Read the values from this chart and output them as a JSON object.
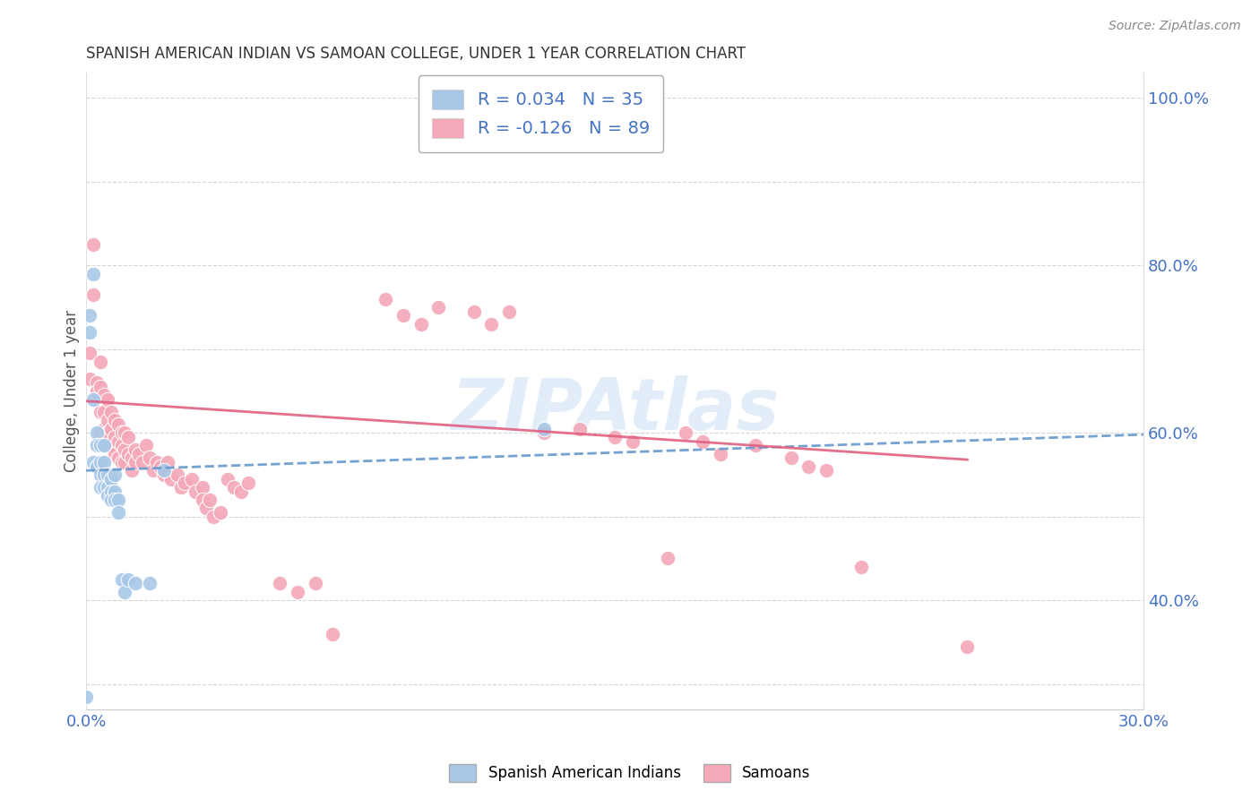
{
  "title": "SPANISH AMERICAN INDIAN VS SAMOAN COLLEGE, UNDER 1 YEAR CORRELATION CHART",
  "source": "Source: ZipAtlas.com",
  "ylabel": "College, Under 1 year",
  "xmin": 0.0,
  "xmax": 0.3,
  "ymin": 0.27,
  "ymax": 1.03,
  "watermark": "ZIPAtlas",
  "blue_color": "#A8C8E8",
  "pink_color": "#F4A8B8",
  "blue_line_color": "#6699CC",
  "pink_line_color": "#E06080",
  "title_color": "#333333",
  "axis_label_color": "#555555",
  "tick_color": "#4472C4",
  "grid_color": "#CCCCCC",
  "background_color": "#FFFFFF",
  "blue_dots_x": [
    0.001,
    0.001,
    0.002,
    0.002,
    0.002,
    0.003,
    0.003,
    0.003,
    0.004,
    0.004,
    0.004,
    0.004,
    0.005,
    0.005,
    0.005,
    0.005,
    0.006,
    0.006,
    0.006,
    0.007,
    0.007,
    0.007,
    0.008,
    0.008,
    0.008,
    0.009,
    0.009,
    0.01,
    0.011,
    0.012,
    0.014,
    0.018,
    0.022,
    0.13,
    0.0
  ],
  "blue_dots_y": [
    0.74,
    0.72,
    0.565,
    0.79,
    0.64,
    0.6,
    0.585,
    0.56,
    0.585,
    0.565,
    0.55,
    0.535,
    0.585,
    0.565,
    0.55,
    0.535,
    0.55,
    0.535,
    0.525,
    0.545,
    0.53,
    0.52,
    0.55,
    0.53,
    0.52,
    0.52,
    0.505,
    0.425,
    0.41,
    0.425,
    0.42,
    0.42,
    0.555,
    0.605,
    0.285
  ],
  "pink_dots_x": [
    0.001,
    0.001,
    0.002,
    0.002,
    0.003,
    0.003,
    0.004,
    0.004,
    0.004,
    0.004,
    0.005,
    0.005,
    0.005,
    0.006,
    0.006,
    0.006,
    0.007,
    0.007,
    0.007,
    0.008,
    0.008,
    0.008,
    0.009,
    0.009,
    0.009,
    0.01,
    0.01,
    0.01,
    0.011,
    0.011,
    0.011,
    0.012,
    0.012,
    0.013,
    0.013,
    0.014,
    0.014,
    0.015,
    0.016,
    0.017,
    0.018,
    0.019,
    0.02,
    0.021,
    0.022,
    0.023,
    0.024,
    0.026,
    0.027,
    0.028,
    0.03,
    0.031,
    0.033,
    0.033,
    0.034,
    0.035,
    0.036,
    0.038,
    0.04,
    0.042,
    0.044,
    0.046,
    0.055,
    0.06,
    0.065,
    0.07,
    0.085,
    0.09,
    0.095,
    0.1,
    0.11,
    0.115,
    0.12,
    0.13,
    0.14,
    0.15,
    0.155,
    0.165,
    0.17,
    0.175,
    0.18,
    0.19,
    0.2,
    0.205,
    0.21,
    0.22,
    0.25
  ],
  "pink_dots_y": [
    0.695,
    0.665,
    0.825,
    0.765,
    0.66,
    0.65,
    0.685,
    0.655,
    0.625,
    0.6,
    0.645,
    0.625,
    0.605,
    0.64,
    0.615,
    0.6,
    0.625,
    0.605,
    0.585,
    0.615,
    0.595,
    0.575,
    0.61,
    0.59,
    0.57,
    0.6,
    0.585,
    0.565,
    0.6,
    0.58,
    0.565,
    0.595,
    0.575,
    0.57,
    0.555,
    0.58,
    0.565,
    0.575,
    0.565,
    0.585,
    0.57,
    0.555,
    0.565,
    0.56,
    0.55,
    0.565,
    0.545,
    0.55,
    0.535,
    0.54,
    0.545,
    0.53,
    0.535,
    0.52,
    0.51,
    0.52,
    0.5,
    0.505,
    0.545,
    0.535,
    0.53,
    0.54,
    0.42,
    0.41,
    0.42,
    0.36,
    0.76,
    0.74,
    0.73,
    0.75,
    0.745,
    0.73,
    0.745,
    0.6,
    0.605,
    0.595,
    0.59,
    0.45,
    0.6,
    0.59,
    0.575,
    0.585,
    0.57,
    0.56,
    0.555,
    0.44,
    0.345
  ],
  "blue_trendline_x0": 0.0,
  "blue_trendline_x1": 0.3,
  "blue_trendline_y0": 0.555,
  "blue_trendline_y1": 0.598,
  "pink_trendline_x0": 0.0,
  "pink_trendline_x1": 0.25,
  "pink_trendline_y0": 0.638,
  "pink_trendline_y1": 0.568
}
